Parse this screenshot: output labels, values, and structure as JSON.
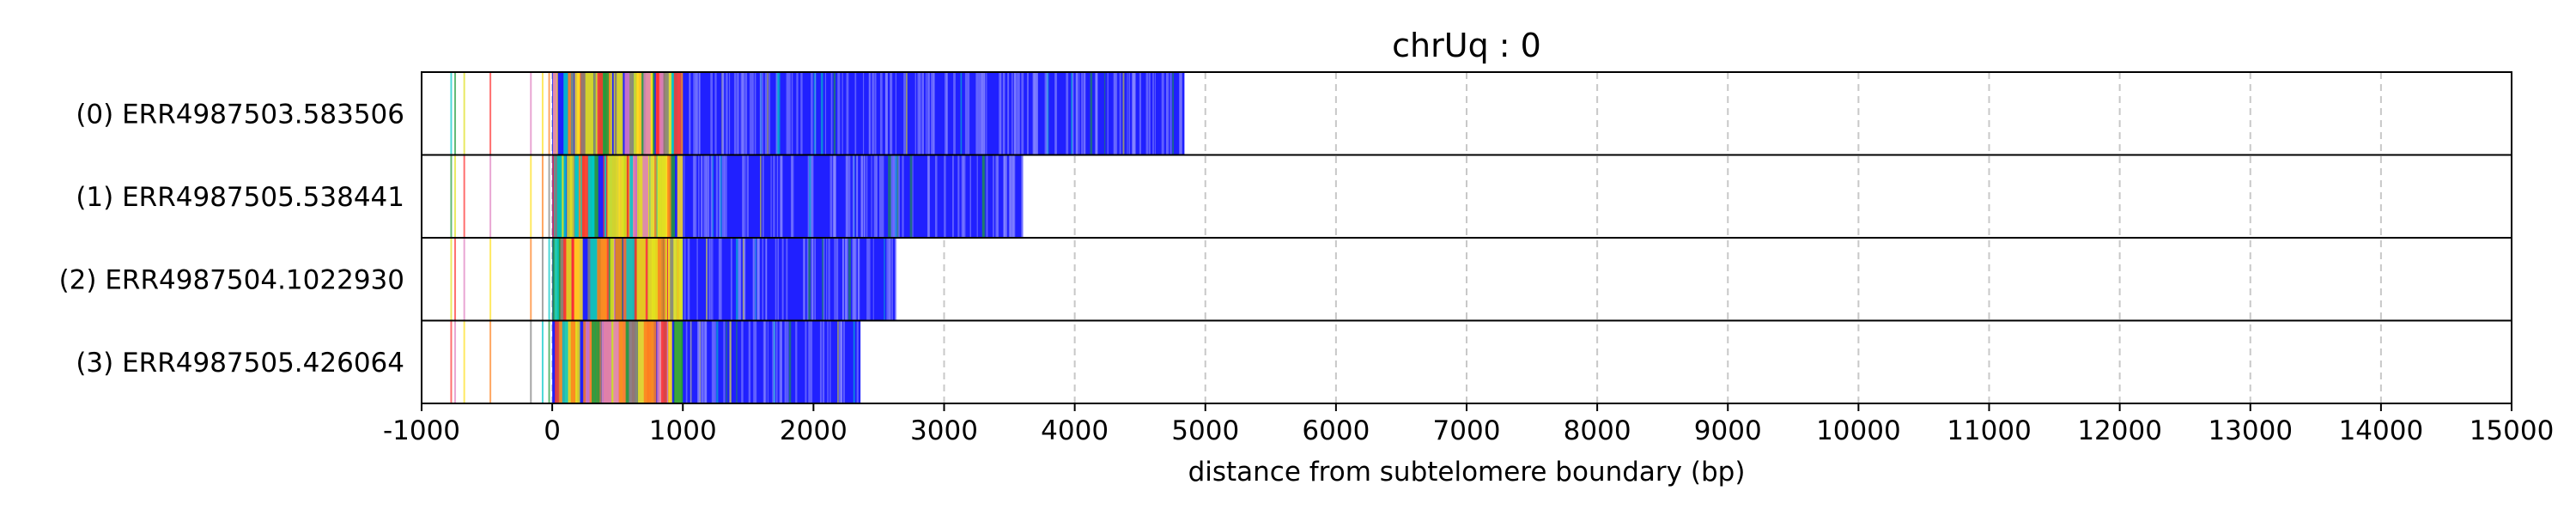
{
  "chart_data": {
    "type": "read-track",
    "title": "chrUq : 0",
    "xlabel": "distance from subtelomere boundary (bp)",
    "ylabel": "",
    "xlim": [
      -1000,
      15000
    ],
    "xticks": [
      -1000,
      0,
      1000,
      2000,
      3000,
      4000,
      5000,
      6000,
      7000,
      8000,
      9000,
      10000,
      11000,
      12000,
      13000,
      14000,
      15000
    ],
    "xtick_labels": [
      "-1000",
      "0",
      "1000",
      "2000",
      "3000",
      "4000",
      "5000",
      "6000",
      "7000",
      "8000",
      "9000",
      "10000",
      "11000",
      "12000",
      "13000",
      "14000",
      "15000"
    ],
    "vertical_grid": true,
    "grid_style": "dashed",
    "reads": [
      {
        "label": "(0) ERR4987503.583506",
        "start": -1000,
        "end": 4840
      },
      {
        "label": "(1) ERR4987505.538441",
        "start": -1000,
        "end": 3600
      },
      {
        "label": "(2) ERR4987504.1022930",
        "start": -1000,
        "end": 2630
      },
      {
        "label": "(3) ERR4987505.426064",
        "start": -1000,
        "end": 2360
      }
    ],
    "segment_colors": {
      "main": "#2020ff",
      "accents": [
        "#00c8c8",
        "#1e9b3c",
        "#e0e020",
        "#ff3030",
        "#e080c0",
        "#ffe020",
        "#ff8020",
        "#808080"
      ]
    }
  }
}
